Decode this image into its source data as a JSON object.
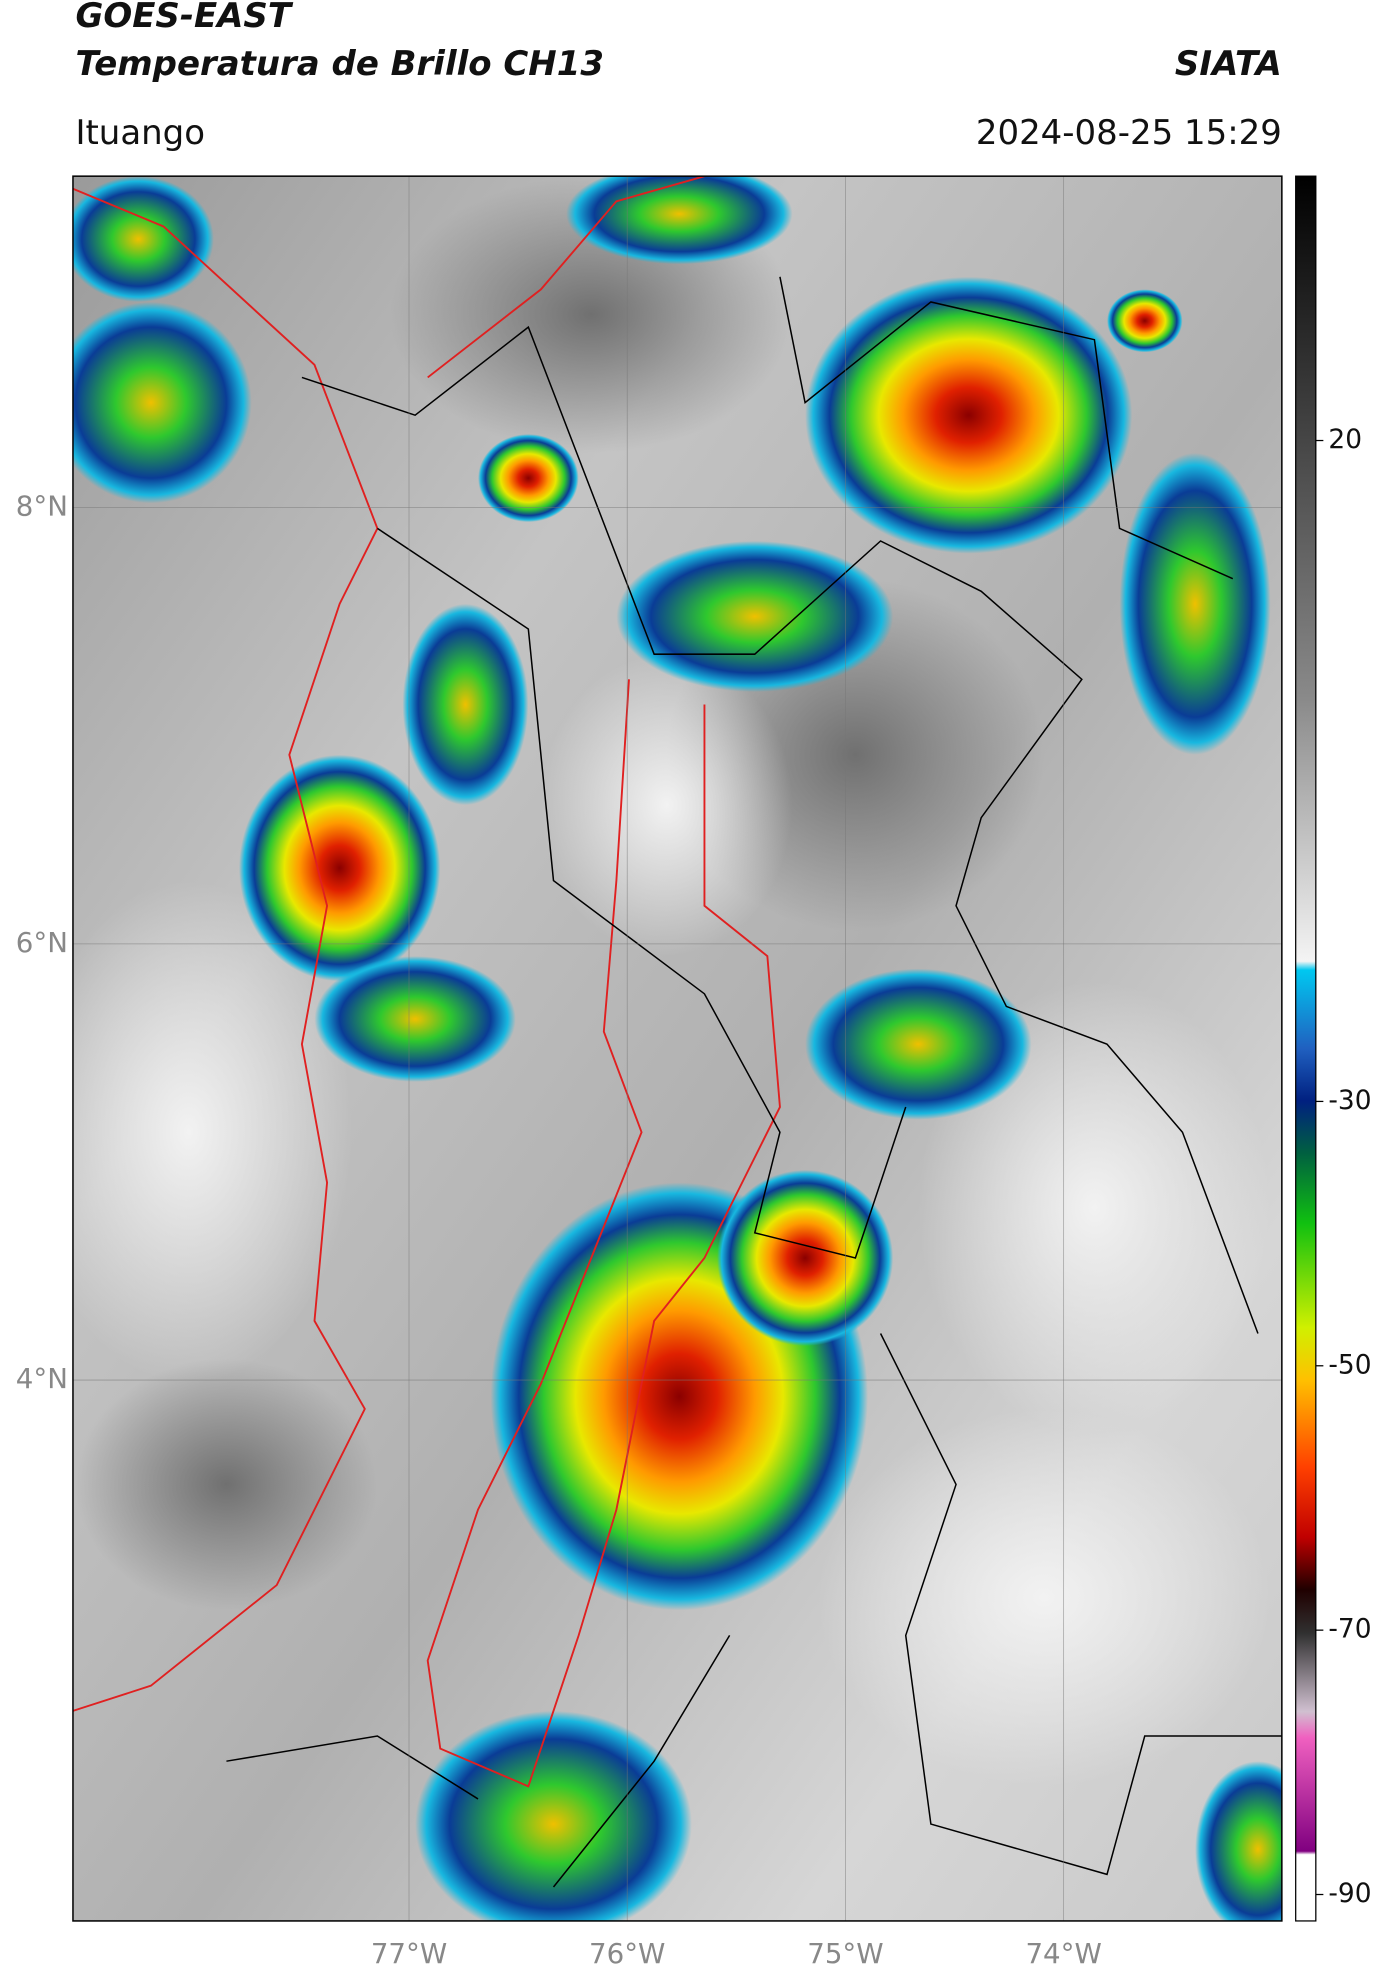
{
  "header": {
    "title_line1": "GOES-EAST",
    "title_line2": "Temperatura de Brillo CH13",
    "source": "SIATA",
    "location": "Ituango",
    "timestamp": "2024-08-25 15:29"
  },
  "map": {
    "lat_range": [
      1.52,
      9.52
    ],
    "lon_range": [
      -78.54,
      -73.0
    ],
    "lat_ticks": [
      {
        "value": 8,
        "label": "8°N"
      },
      {
        "value": 6,
        "label": "6°N"
      },
      {
        "value": 4,
        "label": "4°N"
      }
    ],
    "lon_ticks": [
      {
        "value": -77,
        "label": "77°W"
      },
      {
        "value": -76,
        "label": "76°W"
      },
      {
        "value": -75,
        "label": "75°W"
      },
      {
        "value": -74,
        "label": "74°W"
      }
    ],
    "grid": true
  },
  "colorbar": {
    "ylim": [
      -92,
      40
    ],
    "yticks": [
      20,
      -30,
      -50,
      -70,
      -90
    ]
  }
}
